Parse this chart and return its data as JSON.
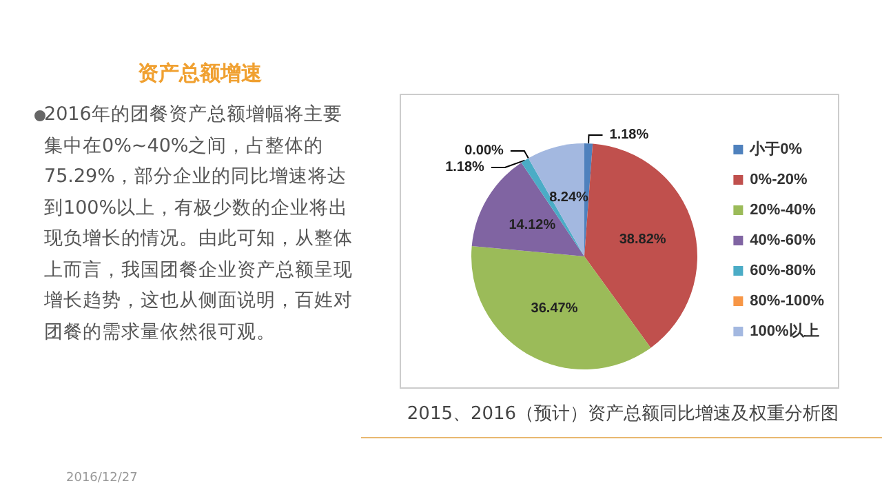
{
  "chart_data": {
    "type": "pie",
    "title": "2015、2016（预计）资产总额同比增速及权重分析图",
    "subtitle": "资产总额增速",
    "annotations": [
      "2016年的团餐资产总额增幅将主要集中在0%~40%之间，占整体的75.29%，部分企业的同比增速将达到100%以上，有极少数的企业将出现负增长的情况。由此可知，从整体上而言，我国团餐企业资产总额呈现增长趋势，这也从侧面说明，百姓对团餐的需求量依然很可观。",
      "2016/12/27"
    ],
    "categories": [
      "小于0%",
      "0%-20%",
      "20%-40%",
      "40%-60%",
      "60%-80%",
      "80%-100%",
      "100%以上"
    ],
    "values": [
      1.18,
      38.82,
      36.47,
      14.12,
      1.18,
      0.0,
      8.24
    ],
    "value_labels": [
      "1.18%",
      "38.82%",
      "36.47%",
      "14.12%",
      "1.18%",
      "0.00%",
      "8.24%"
    ],
    "colors": [
      "#4f81bd",
      "#c0504d",
      "#9bbb59",
      "#8064a2",
      "#4bacc6",
      "#f79646",
      "#a3b8e0"
    ],
    "legend": "right"
  }
}
